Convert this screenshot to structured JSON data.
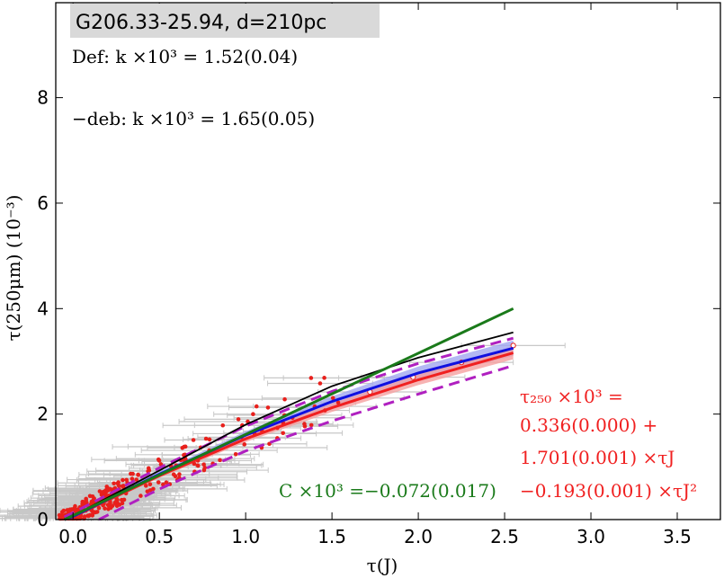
{
  "chart_data": {
    "type": "scatter",
    "title": "G206.33-25.94, d=210pc",
    "xlabel": "τ(J)",
    "ylabel": "τ(250μm) (10⁻³)",
    "xlim": [
      -0.1,
      3.75
    ],
    "ylim": [
      0,
      9.8
    ],
    "xticks": [
      "0.0",
      "0.5",
      "1.0",
      "1.5",
      "2.0",
      "2.5",
      "3.0",
      "3.5"
    ],
    "xtick_values": [
      0,
      0.5,
      1.0,
      1.5,
      2.0,
      2.5,
      3.0,
      3.5
    ],
    "yticks": [
      "0",
      "2",
      "4",
      "6",
      "8"
    ],
    "ytick_values": [
      0,
      2,
      4,
      6,
      8
    ],
    "grid": false,
    "annotations": {
      "def": "Def:  k ×10³ = 1.52(0.04)",
      "deb": "−deb: k ×10³ = 1.65(0.05)",
      "green_fit": "C ×10³ =−0.072(0.017)",
      "red_fit_line1": "τ₂₅₀ ×10³ =",
      "red_fit_line2": "0.336(0.000) +",
      "red_fit_line3": "1.701(0.001) ×τJ",
      "red_fit_line4": "−0.193(0.001) ×τJ²"
    },
    "colors": {
      "points": "#e8201c",
      "errorbars": "#c8c8c8",
      "black_line": "#000000",
      "green_line": "#1a7a1a",
      "blue_line": "#1010e0",
      "blue_band": "#a0a6f0",
      "red_line": "#f02020",
      "red_band": "#f5a0a0",
      "magenta_dashed": "#b020c0",
      "title_box": "#d9d9d9",
      "green_text": "#1a7a1a",
      "red_text": "#f02020"
    },
    "lines": {
      "black": {
        "x": [
          -0.05,
          0.0,
          0.5,
          1.0,
          1.5,
          2.0,
          2.55
        ],
        "y": [
          0.0,
          0.07,
          0.93,
          1.8,
          2.53,
          3.07,
          3.55
        ]
      },
      "green": {
        "x": [
          -0.05,
          2.55
        ],
        "y": [
          0.0,
          4.0
        ]
      },
      "blue": {
        "x": [
          -0.05,
          0.0,
          0.5,
          1.0,
          1.5,
          2.0,
          2.55
        ],
        "y": [
          0.0,
          0.06,
          0.86,
          1.6,
          2.24,
          2.78,
          3.25
        ]
      },
      "red": {
        "x": [
          -0.05,
          0.0,
          0.5,
          1.0,
          1.5,
          2.0,
          2.55
        ],
        "y": [
          0.0,
          0.05,
          0.83,
          1.53,
          2.12,
          2.65,
          3.16
        ]
      },
      "magenta_upper": {
        "x": [
          -0.05,
          0.0,
          0.5,
          1.0,
          1.5,
          2.0,
          2.55
        ],
        "y": [
          0.05,
          0.13,
          0.98,
          1.77,
          2.43,
          2.96,
          3.44
        ]
      },
      "magenta_lower": {
        "x": [
          0.15,
          0.5,
          1.0,
          1.5,
          2.0,
          2.55
        ],
        "y": [
          0.0,
          0.58,
          1.3,
          1.87,
          2.38,
          2.92
        ]
      }
    },
    "highlighted_points": [
      {
        "x": 1.72,
        "y": 2.42
      },
      {
        "x": 1.97,
        "y": 2.7
      },
      {
        "x": 2.25,
        "y": 2.98
      },
      {
        "x": 2.55,
        "y": 3.3
      }
    ],
    "scatter_seed": 7
  }
}
